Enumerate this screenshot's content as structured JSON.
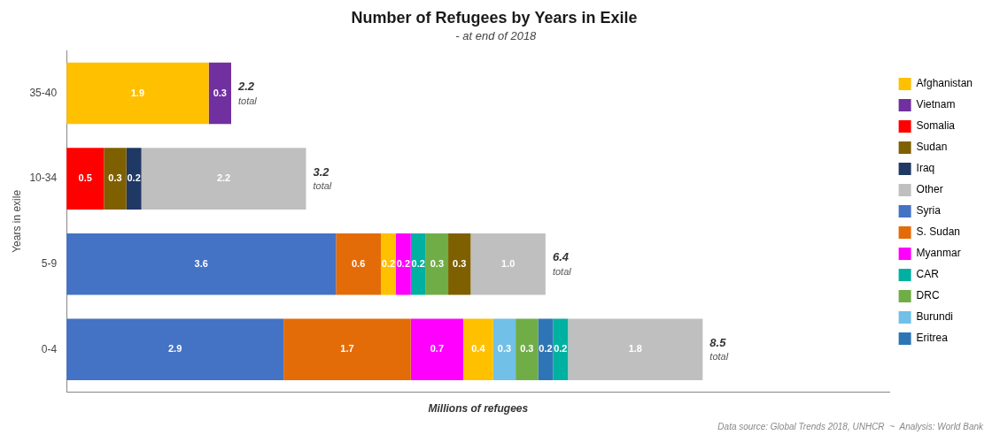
{
  "chart_data": {
    "type": "bar",
    "orientation": "horizontal",
    "stacked": true,
    "title": "Number of Refugees by Years in Exile",
    "subtitle": " - at end of 2018",
    "xlabel": "Millions of refugees",
    "ylabel": "Years in exile",
    "footnote": "Data source: Global Trends 2018, UNHCR  ~  Analysis: World Bank",
    "categories": [
      "35-40",
      "10-34",
      "5-9",
      "0-4"
    ],
    "series": [
      {
        "name": "Afghanistan",
        "color": "#FFC000",
        "values": [
          1.9,
          null,
          null,
          null
        ]
      },
      {
        "name": "Vietnam",
        "color": "#7030A0",
        "values": [
          0.3,
          null,
          null,
          null
        ]
      },
      {
        "name": "Somalia",
        "color": "#FF0000",
        "values": [
          null,
          0.5,
          null,
          null
        ]
      },
      {
        "name": "Sudan",
        "color": "#7F6000",
        "values": [
          null,
          0.3,
          null,
          null
        ]
      },
      {
        "name": "Iraq",
        "color": "#1F3864",
        "values": [
          null,
          0.2,
          null,
          null
        ]
      },
      {
        "name": "Other",
        "color": "#BFBFBF",
        "values": [
          null,
          2.2,
          null,
          null
        ]
      },
      {
        "name": "Syria",
        "color": "#4472C4",
        "values": [
          null,
          null,
          3.6,
          null
        ]
      },
      {
        "name": "S. Sudan",
        "color": "#E36C09",
        "values": [
          null,
          null,
          0.6,
          null
        ]
      },
      {
        "name": "Afghanistan",
        "color": "#FFC000",
        "values": [
          null,
          null,
          0.2,
          null
        ]
      },
      {
        "name": "Myanmar",
        "color": "#FF00FF",
        "values": [
          null,
          null,
          0.2,
          null
        ]
      },
      {
        "name": "CAR",
        "color": "#00B0A0",
        "values": [
          null,
          null,
          0.2,
          null
        ]
      },
      {
        "name": "DRC",
        "color": "#70AD47",
        "values": [
          null,
          null,
          0.3,
          null
        ]
      },
      {
        "name": "Sudan",
        "color": "#7F6000",
        "values": [
          null,
          null,
          0.3,
          null
        ]
      },
      {
        "name": "Other",
        "color": "#BFBFBF",
        "values": [
          null,
          null,
          1.0,
          null
        ],
        "value_labels": [
          null,
          null,
          "1.0",
          null
        ]
      },
      {
        "name": "Syria",
        "color": "#4472C4",
        "values": [
          null,
          null,
          null,
          2.9
        ]
      },
      {
        "name": "S. Sudan",
        "color": "#E36C09",
        "values": [
          null,
          null,
          null,
          1.7
        ]
      },
      {
        "name": "Myanmar",
        "color": "#FF00FF",
        "values": [
          null,
          null,
          null,
          0.7
        ]
      },
      {
        "name": "Afghanistan",
        "color": "#FFC000",
        "values": [
          null,
          null,
          null,
          0.4
        ]
      },
      {
        "name": "Burundi",
        "color": "#70C0E8",
        "values": [
          null,
          null,
          null,
          0.3
        ]
      },
      {
        "name": "DRC",
        "color": "#70AD47",
        "values": [
          null,
          null,
          null,
          0.3
        ]
      },
      {
        "name": "Eritrea",
        "color": "#2E75B6",
        "values": [
          null,
          null,
          null,
          0.2
        ]
      },
      {
        "name": "CAR",
        "color": "#00B0A0",
        "values": [
          null,
          null,
          null,
          0.2
        ]
      },
      {
        "name": "Other",
        "color": "#BFBFBF",
        "values": [
          null,
          null,
          null,
          1.8
        ]
      }
    ],
    "totals": [
      2.2,
      3.2,
      6.4,
      8.5
    ],
    "total_label": "total",
    "xlim": [
      0,
      11
    ],
    "grid": false,
    "legend": "right",
    "data_labels": true,
    "tick_labels": "y"
  }
}
